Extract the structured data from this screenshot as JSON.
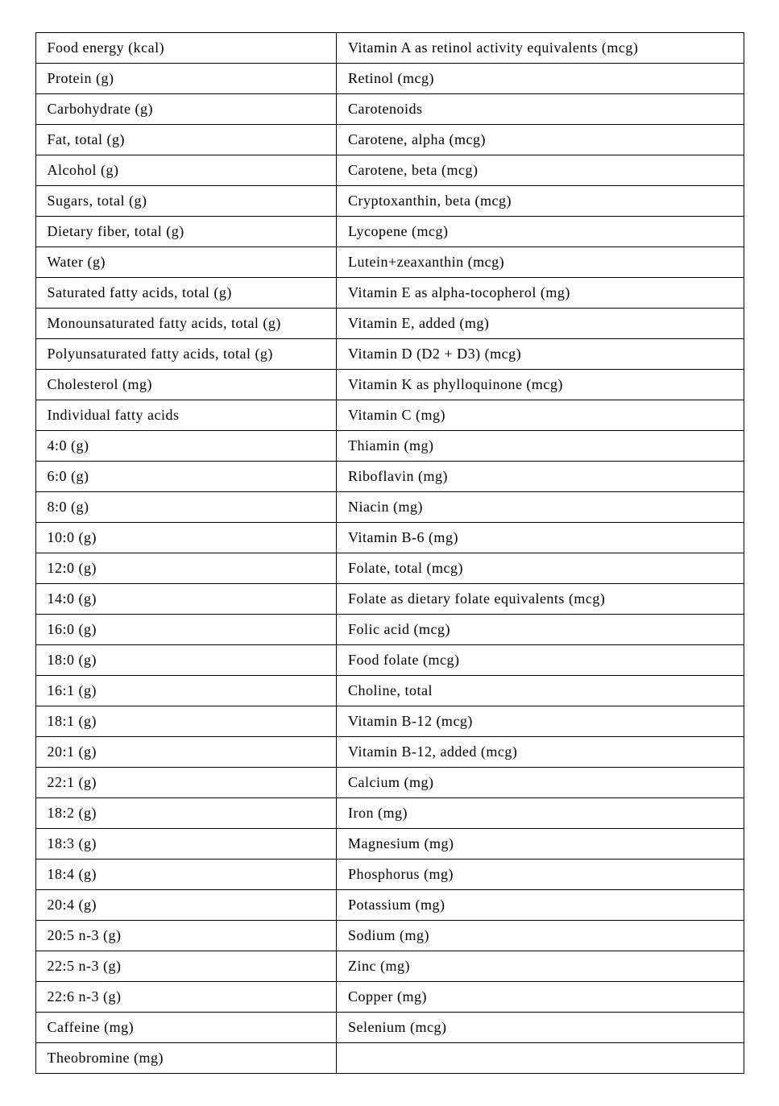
{
  "table": {
    "type": "table",
    "columns": [
      "left",
      "right"
    ],
    "column_widths": [
      "42%",
      "58%"
    ],
    "border_color": "#000000",
    "background_color": "#ffffff",
    "text_color": "#000000",
    "font_size_pt": 14,
    "rows": [
      {
        "left": "Food energy (kcal)",
        "right": "Vitamin A as retinol activity equivalents (mcg)"
      },
      {
        "left": "Protein (g)",
        "right": "Retinol (mcg)"
      },
      {
        "left": "Carbohydrate (g)",
        "right": "Carotenoids"
      },
      {
        "left": "Fat, total (g)",
        "right": "Carotene, alpha (mcg)"
      },
      {
        "left": "Alcohol (g)",
        "right": "Carotene, beta (mcg)"
      },
      {
        "left": "Sugars, total (g)",
        "right": "Cryptoxanthin, beta (mcg)"
      },
      {
        "left": "Dietary fiber, total (g)",
        "right": "Lycopene (mcg)"
      },
      {
        "left": "Water (g)",
        "right": "Lutein+zeaxanthin (mcg)"
      },
      {
        "left": "Saturated fatty acids, total (g)",
        "right": "Vitamin E as alpha-tocopherol (mg)"
      },
      {
        "left": "Monounsaturated fatty acids, total (g)",
        "right": "Vitamin E, added (mg)"
      },
      {
        "left": "Polyunsaturated fatty acids, total (g)",
        "right": "Vitamin D (D2 + D3) (mcg)"
      },
      {
        "left": "Cholesterol (mg)",
        "right": "Vitamin K as phylloquinone (mcg)"
      },
      {
        "left": "Individual fatty acids",
        "right": "Vitamin C (mg)"
      },
      {
        "left": "4:0 (g)",
        "right": "Thiamin (mg)"
      },
      {
        "left": "6:0 (g)",
        "right": "Riboflavin (mg)"
      },
      {
        "left": "8:0 (g)",
        "right": "Niacin (mg)"
      },
      {
        "left": "10:0 (g)",
        "right": "Vitamin B-6 (mg)"
      },
      {
        "left": "12:0 (g)",
        "right": "Folate, total (mcg)"
      },
      {
        "left": "14:0 (g)",
        "right": "Folate as dietary folate equivalents (mcg)"
      },
      {
        "left": "16:0 (g)",
        "right": "Folic acid (mcg)"
      },
      {
        "left": "18:0 (g)",
        "right": "Food folate (mcg)"
      },
      {
        "left": "16:1 (g)",
        "right": "Choline, total"
      },
      {
        "left": "18:1 (g)",
        "right": "Vitamin B-12 (mcg)"
      },
      {
        "left": "20:1 (g)",
        "right": "Vitamin B-12, added (mcg)"
      },
      {
        "left": "22:1 (g)",
        "right": "Calcium (mg)"
      },
      {
        "left": "18:2 (g)",
        "right": "Iron (mg)"
      },
      {
        "left": "18:3 (g)",
        "right": "Magnesium (mg)"
      },
      {
        "left": "18:4 (g)",
        "right": "Phosphorus (mg)"
      },
      {
        "left": "20:4 (g)",
        "right": "Potassium (mg)"
      },
      {
        "left": "20:5 n-3 (g)",
        "right": "Sodium (mg)"
      },
      {
        "left": "22:5 n-3 (g)",
        "right": "Zinc (mg)"
      },
      {
        "left": "22:6 n-3 (g)",
        "right": "Copper (mg)"
      },
      {
        "left": "Caffeine (mg)",
        "right": "Selenium (mcg)"
      },
      {
        "left": "Theobromine (mg)",
        "right": ""
      }
    ]
  }
}
